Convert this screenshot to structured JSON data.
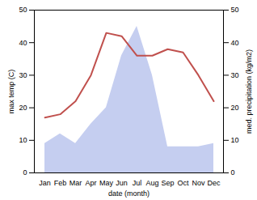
{
  "chart_data": {
    "type": "line",
    "xlabel": "date (month)",
    "ylabel": "max temp (C)",
    "y2label": "med. precipitation (kg/m2)",
    "categories": [
      "Jan",
      "Feb",
      "Mar",
      "Apr",
      "May",
      "Jun",
      "Jul",
      "Aug",
      "Sep",
      "Oct",
      "Nov",
      "Dec"
    ],
    "series": [
      {
        "type": "area",
        "color": "#c5cef0",
        "axis": "y2",
        "values": [
          9,
          12,
          9,
          15,
          20,
          36,
          45,
          30,
          8,
          8,
          8,
          9
        ]
      },
      {
        "type": "line",
        "color": "#c0504d",
        "values": [
          17,
          18,
          22,
          30,
          43,
          42,
          36,
          36,
          38,
          37,
          30,
          22
        ]
      }
    ],
    "ylim": [
      0,
      50
    ],
    "yticks": [
      0,
      10,
      20,
      30,
      40,
      50
    ],
    "y2lim": [
      0,
      50
    ],
    "y2ticks": [
      0,
      10,
      20,
      30,
      40,
      50
    ]
  }
}
